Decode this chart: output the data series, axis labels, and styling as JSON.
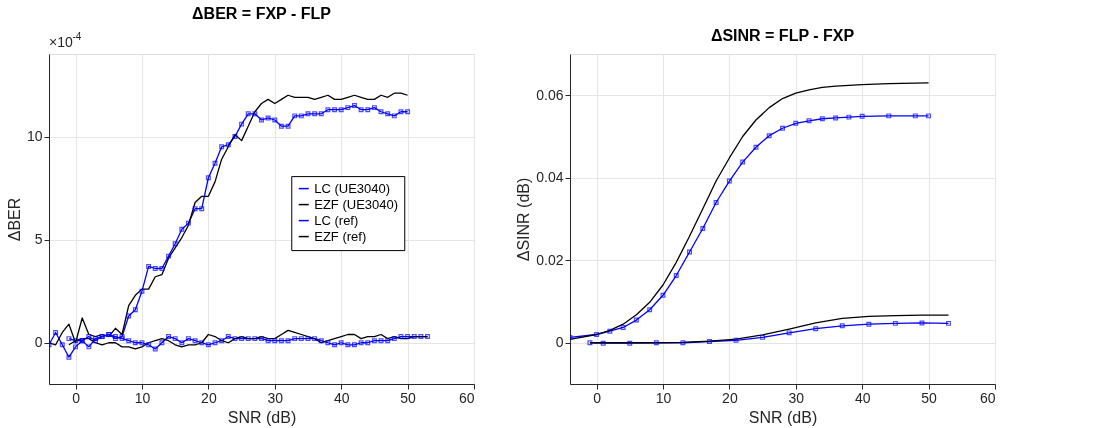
{
  "chart_data": [
    {
      "type": "line",
      "title": "ΔBER = FXP - FLP",
      "xlabel": "SNR (dB)",
      "ylabel": "ΔBER",
      "annotations": [
        "×10$^{-4}$"
      ],
      "xlim": [
        -4,
        60
      ],
      "xticks": [
        0,
        10,
        20,
        30,
        40,
        50,
        60
      ],
      "ylim": [
        -2,
        14
      ],
      "yticks": [
        0,
        5,
        10
      ],
      "grid": true,
      "legend": "right",
      "series": [
        {
          "name": "LC   (UE3040)",
          "color": "#0000ff",
          "marker": "square",
          "x": [
            -4,
            -3,
            -2,
            -1,
            0,
            1,
            2,
            3,
            4,
            5,
            6,
            7,
            8,
            9,
            10,
            11,
            12,
            13,
            14,
            15,
            16,
            17,
            18,
            19,
            20,
            21,
            22,
            23,
            24,
            25,
            26,
            27,
            28,
            29,
            30,
            31,
            32,
            33,
            34,
            35,
            36,
            37,
            38,
            39,
            40,
            41,
            42,
            43,
            44,
            45,
            46,
            47,
            48,
            49,
            50
          ],
          "values": [
            -0.1,
            0.5,
            -0.1,
            -0.7,
            -0.2,
            0.1,
            0.3,
            0.1,
            0.3,
            0.4,
            0.2,
            0.3,
            1.3,
            1.6,
            2.5,
            3.7,
            3.6,
            3.6,
            4.2,
            4.8,
            5.5,
            5.8,
            6.5,
            6.5,
            8.0,
            8.7,
            9.5,
            9.6,
            10.0,
            10.6,
            11.1,
            11.1,
            10.8,
            10.9,
            10.8,
            10.5,
            10.5,
            11.0,
            11.0,
            11.1,
            11.1,
            11.1,
            11.3,
            11.3,
            11.3,
            11.4,
            11.5,
            11.3,
            11.3,
            11.4,
            11.2,
            11.1,
            11.0,
            11.2,
            11.2
          ]
        },
        {
          "name": "EZF (UE3040)",
          "color": "#000000",
          "marker": "none",
          "x": [
            -4,
            -3,
            -2,
            -1,
            0,
            1,
            2,
            3,
            4,
            5,
            6,
            7,
            8,
            9,
            10,
            11,
            12,
            13,
            14,
            15,
            16,
            17,
            18,
            19,
            20,
            21,
            22,
            23,
            24,
            25,
            26,
            27,
            28,
            29,
            30,
            31,
            32,
            33,
            34,
            35,
            36,
            37,
            38,
            39,
            40,
            41,
            42,
            43,
            44,
            45,
            46,
            47,
            48,
            49,
            50
          ],
          "values": [
            0.0,
            -0.1,
            0.5,
            0.9,
            0.0,
            1.2,
            0.4,
            0.3,
            0.4,
            0.3,
            0.7,
            0.4,
            1.8,
            2.3,
            2.6,
            2.6,
            3.2,
            3.3,
            4.1,
            4.6,
            5.1,
            5.7,
            6.8,
            7.1,
            7.1,
            7.8,
            8.9,
            9.5,
            10.1,
            9.8,
            10.5,
            11.2,
            11.6,
            11.8,
            11.6,
            11.8,
            12.0,
            11.9,
            11.9,
            11.9,
            11.8,
            11.9,
            12.0,
            11.8,
            11.8,
            11.9,
            12.0,
            11.9,
            11.8,
            11.8,
            12.0,
            11.9,
            12.1,
            12.1,
            12.0
          ]
        },
        {
          "name": "LC   (ref)",
          "color": "#0000ff",
          "marker": "square",
          "x": [
            -1,
            0,
            1,
            2,
            3,
            4,
            5,
            6,
            7,
            8,
            9,
            10,
            11,
            12,
            13,
            14,
            15,
            16,
            17,
            18,
            19,
            20,
            21,
            22,
            23,
            24,
            25,
            26,
            27,
            28,
            29,
            30,
            31,
            32,
            33,
            34,
            35,
            36,
            37,
            38,
            39,
            40,
            41,
            42,
            43,
            44,
            45,
            46,
            47,
            48,
            49,
            50,
            51,
            52,
            53
          ],
          "values": [
            0.2,
            0.1,
            0.1,
            -0.2,
            0.2,
            0.3,
            0.4,
            0.3,
            0.2,
            0.1,
            0.0,
            0.0,
            -0.1,
            -0.3,
            0.0,
            0.3,
            0.2,
            0.0,
            0.2,
            0.1,
            0.0,
            -0.1,
            0.0,
            0.1,
            0.3,
            0.2,
            0.2,
            0.2,
            0.2,
            0.2,
            0.1,
            0.1,
            0.1,
            0.1,
            0.2,
            0.2,
            0.2,
            0.2,
            0.1,
            0.0,
            -0.1,
            0.0,
            -0.1,
            -0.1,
            0.0,
            0.0,
            0.1,
            0.1,
            0.1,
            0.2,
            0.3,
            0.3,
            0.3,
            0.3,
            0.3
          ]
        },
        {
          "name": "EZF (ref)",
          "color": "#000000",
          "marker": "none",
          "x": [
            -1,
            0,
            1,
            2,
            3,
            4,
            5,
            6,
            7,
            8,
            9,
            10,
            11,
            12,
            13,
            14,
            15,
            16,
            17,
            18,
            19,
            20,
            21,
            22,
            23,
            24,
            25,
            26,
            27,
            28,
            29,
            30,
            31,
            32,
            33,
            34,
            35,
            36,
            37,
            38,
            39,
            40,
            41,
            42,
            43,
            44,
            45,
            46,
            47,
            48,
            49,
            50,
            51,
            52,
            53
          ],
          "values": [
            -0.1,
            0.1,
            0.2,
            0.2,
            0.0,
            -0.1,
            0.0,
            0.0,
            -0.2,
            -0.2,
            -0.3,
            -0.2,
            0.0,
            0.1,
            0.2,
            0.1,
            -0.1,
            -0.2,
            -0.1,
            -0.1,
            0.0,
            0.4,
            0.3,
            0.1,
            0.0,
            0.2,
            0.3,
            0.2,
            0.2,
            0.3,
            0.2,
            0.2,
            0.4,
            0.6,
            0.5,
            0.4,
            0.3,
            0.2,
            0.0,
            0.1,
            0.2,
            0.3,
            0.4,
            0.4,
            0.2,
            0.3,
            0.3,
            0.4,
            0.2,
            0.3,
            0.2,
            0.2,
            0.3,
            0.3,
            0.3
          ]
        }
      ]
    },
    {
      "type": "line",
      "title": "ΔSINR = FLP - FXP",
      "xlabel": "SNR (dB)",
      "ylabel": "ΔSINR (dB)",
      "xlim": [
        -4,
        60
      ],
      "xticks": [
        0,
        10,
        20,
        30,
        40,
        50,
        60
      ],
      "ylim": [
        -0.01,
        0.07
      ],
      "yticks": [
        0,
        0.02,
        0.04,
        0.06
      ],
      "grid": true,
      "legend": "right",
      "series": [
        {
          "name": "LC   (UE3040)",
          "color": "#0000ff",
          "marker": "square",
          "x": [
            -4,
            0,
            2,
            4,
            6,
            8,
            10,
            12,
            14,
            16,
            18,
            20,
            22,
            24,
            26,
            28,
            30,
            32,
            34,
            36,
            38,
            40,
            44,
            48,
            50
          ],
          "values": [
            0.0013,
            0.002,
            0.0028,
            0.0037,
            0.0055,
            0.008,
            0.0115,
            0.0163,
            0.022,
            0.0277,
            0.034,
            0.0392,
            0.0438,
            0.0474,
            0.0502,
            0.052,
            0.0532,
            0.0538,
            0.0543,
            0.0545,
            0.0547,
            0.0549,
            0.055,
            0.055,
            0.055
          ]
        },
        {
          "name": "EZF (UE3040)",
          "color": "#000000",
          "marker": "none",
          "x": [
            -4,
            0,
            2,
            4,
            6,
            8,
            10,
            12,
            14,
            16,
            18,
            20,
            22,
            24,
            26,
            28,
            30,
            32,
            34,
            36,
            40,
            44,
            50
          ],
          "values": [
            0.0008,
            0.002,
            0.003,
            0.0045,
            0.0068,
            0.0098,
            0.014,
            0.0195,
            0.0258,
            0.0325,
            0.0392,
            0.0448,
            0.05,
            0.054,
            0.057,
            0.0592,
            0.0605,
            0.0613,
            0.0619,
            0.0622,
            0.0626,
            0.0628,
            0.063
          ]
        },
        {
          "name": "LC   (ref)",
          "color": "#0000ff",
          "marker": "square",
          "x": [
            -1,
            1,
            5,
            9,
            13,
            17,
            21,
            25,
            29,
            33,
            37,
            41,
            45,
            49,
            53
          ],
          "values": [
            0.0,
            -0.0001,
            -0.0001,
            0.0,
            0.0,
            0.0003,
            0.0006,
            0.0013,
            0.0024,
            0.0034,
            0.0041,
            0.0045,
            0.0047,
            0.0048,
            0.0047
          ]
        },
        {
          "name": "EZF (ref)",
          "color": "#000000",
          "marker": "none",
          "x": [
            -1,
            5,
            9,
            13,
            17,
            21,
            25,
            29,
            33,
            37,
            41,
            45,
            49,
            53
          ],
          "values": [
            0.0,
            0.0,
            0.0,
            0.0001,
            0.0004,
            0.0009,
            0.0019,
            0.0033,
            0.0048,
            0.0059,
            0.0064,
            0.0066,
            0.0067,
            0.0067
          ]
        }
      ]
    }
  ]
}
